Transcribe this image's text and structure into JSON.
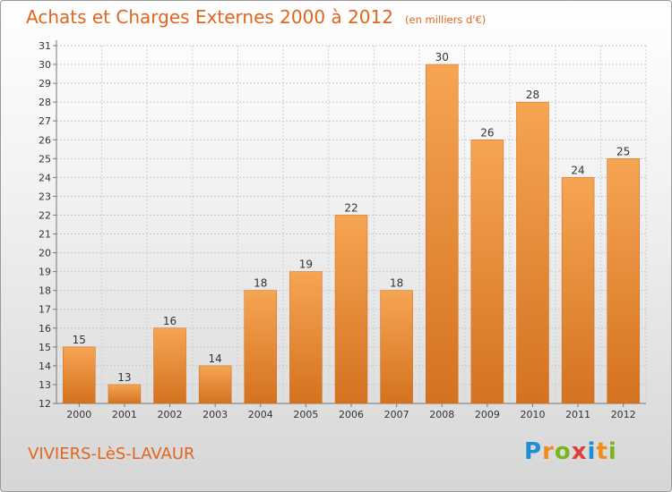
{
  "header": {
    "title": "Achats et Charges Externes 2000 à 2012",
    "subtitle": "(en milliers d'€)"
  },
  "footer": {
    "commune": "VIVIERS-LèS-LAVAUR",
    "brand_letters": [
      {
        "char": "P",
        "color": "#1d8fd6"
      },
      {
        "char": "r",
        "color": "#f08c1a"
      },
      {
        "char": "o",
        "color": "#7ab51d"
      },
      {
        "char": "x",
        "color": "#e03c3c"
      },
      {
        "char": "i",
        "color": "#1d8fd6"
      },
      {
        "char": "t",
        "color": "#f08c1a"
      },
      {
        "char": "i",
        "color": "#7ab51d"
      }
    ]
  },
  "colors": {
    "bar_light": "#f6a553",
    "bar_dark": "#d4721f",
    "title": "#e0661e"
  },
  "chart_data": {
    "type": "bar",
    "title": "Achats et Charges Externes 2000 à 2012",
    "subtitle": "(en milliers d'€)",
    "categories": [
      "2000",
      "2001",
      "2002",
      "2003",
      "2004",
      "2005",
      "2006",
      "2007",
      "2008",
      "2009",
      "2010",
      "2011",
      "2012"
    ],
    "values": [
      15,
      13,
      16,
      14,
      18,
      19,
      22,
      18,
      30,
      26,
      28,
      24,
      25
    ],
    "ylim": [
      12,
      31
    ],
    "yticks": [
      12,
      13,
      14,
      15,
      16,
      17,
      18,
      19,
      20,
      21,
      22,
      23,
      24,
      25,
      26,
      27,
      28,
      29,
      30,
      31
    ],
    "grid": true,
    "data_labels": true
  }
}
